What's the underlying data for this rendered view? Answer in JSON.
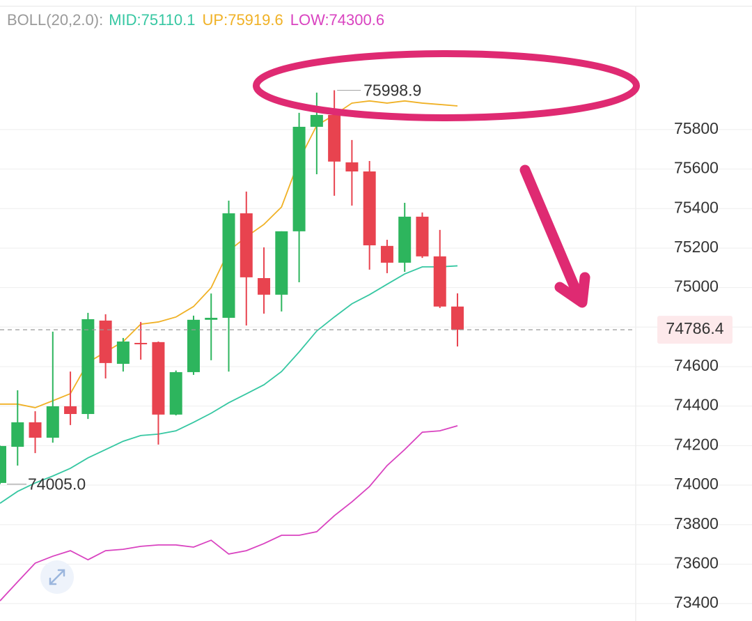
{
  "chart_data": {
    "type": "candlestick",
    "indicator": "BOLL(20,2.0):",
    "categories": [
      null,
      null,
      null,
      null,
      null,
      null,
      null,
      null,
      null,
      null,
      null,
      null,
      null,
      null,
      null,
      null,
      null,
      null,
      null,
      null,
      null,
      null,
      null,
      null,
      null,
      null,
      null
    ],
    "open": [
      74011,
      74194,
      74318,
      74240,
      74399,
      74360,
      74833,
      74614,
      74720,
      74724,
      74357,
      74572,
      74837,
      74847,
      75376,
      75048,
      74964,
      75285,
      75814,
      75874,
      75634,
      75588,
      75211,
      75126,
      75359,
      75158,
      74904
    ],
    "high": [
      74200,
      74480,
      74374,
      74777,
      74575,
      74872,
      74865,
      74745,
      74826,
      74727,
      74580,
      74858,
      74970,
      75440,
      75486,
      75204,
      75285,
      75885,
      75987,
      75998.9,
      75747,
      75641,
      75242,
      75429,
      75380,
      75292,
      74971
    ],
    "low": [
      74005,
      74099,
      74162,
      74215,
      74304,
      74335,
      74540,
      74575,
      74635,
      74205,
      74353,
      74558,
      74632,
      74575,
      74808,
      74868,
      74879,
      75027,
      75574,
      75465,
      75415,
      75091,
      75073,
      75080,
      75150,
      74897,
      74702
    ],
    "close": [
      74198,
      74318,
      74240,
      74399,
      74360,
      74840,
      74618,
      74727,
      74716,
      74357,
      74572,
      74837,
      74847,
      75376,
      75052,
      74964,
      75285,
      75814,
      75874,
      75638,
      75588,
      75214,
      75126,
      75359,
      75158,
      74904,
      74786.4
    ],
    "up_color": "#2db55d",
    "down_color": "#e8434f",
    "series": [
      {
        "name": "MID:75110.1",
        "color": "#36c7a2",
        "values": [
          73908,
          73968,
          74011,
          74046,
          74085,
          74138,
          74180,
          74222,
          74251,
          74258,
          74275,
          74318,
          74364,
          74417,
          74462,
          74508,
          74575,
          74674,
          74780,
          74851,
          74918,
          74964,
          75017,
          75069,
          75105,
          75105,
          75110.1
        ]
      },
      {
        "name": "UP:75919.6",
        "color": "#f0b125",
        "values": [
          74410,
          74410,
          74392,
          74427,
          74463,
          74621,
          74674,
          74727,
          74815,
          74826,
          74851,
          74904,
          74999,
          75186,
          75257,
          75320,
          75408,
          75645,
          75821,
          75874,
          75934,
          75945,
          75934,
          75945,
          75934,
          75927,
          75919.6
        ]
      },
      {
        "name": "LOW:74300.6",
        "color": "#d943c0",
        "values": [
          73414,
          73510,
          73605,
          73640,
          73668,
          73622,
          73668,
          73675,
          73690,
          73697,
          73697,
          73686,
          73721,
          73651,
          73668,
          73704,
          73746,
          73746,
          73764,
          73845,
          73915,
          73993,
          74099,
          74180,
          74268,
          74275,
          74300.6
        ]
      }
    ],
    "low_label": {
      "value": 74005,
      "label": "74005.0"
    },
    "ylim": [
      73312,
      76456
    ],
    "yticks": [
      73400,
      73600,
      73800,
      74000,
      74200,
      74400,
      74600,
      74800,
      75000,
      75200,
      75400,
      75600,
      75800
    ],
    "grid": true
  }
}
